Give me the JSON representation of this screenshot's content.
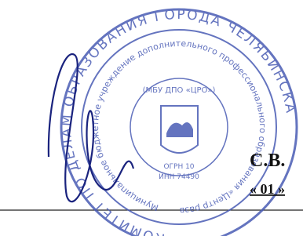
{
  "stamp": {
    "outer_text": "КОМИТЕТ ПО ДЕЛАМ ОБРАЗОВАНИЯ ГОРОДА ЧЕЛЯБИНСКА",
    "inner_text": "Муниципальное бюджетное учреждение дополнительного профессионального образования «Центр развития образования",
    "center_lines": [
      "(МБУ ДПО «ЦРО»)",
      "ОГРН 10",
      "ИНН 74490"
    ]
  },
  "signature_block": {
    "initials": "С.В.",
    "date_day": "« 01 »"
  }
}
